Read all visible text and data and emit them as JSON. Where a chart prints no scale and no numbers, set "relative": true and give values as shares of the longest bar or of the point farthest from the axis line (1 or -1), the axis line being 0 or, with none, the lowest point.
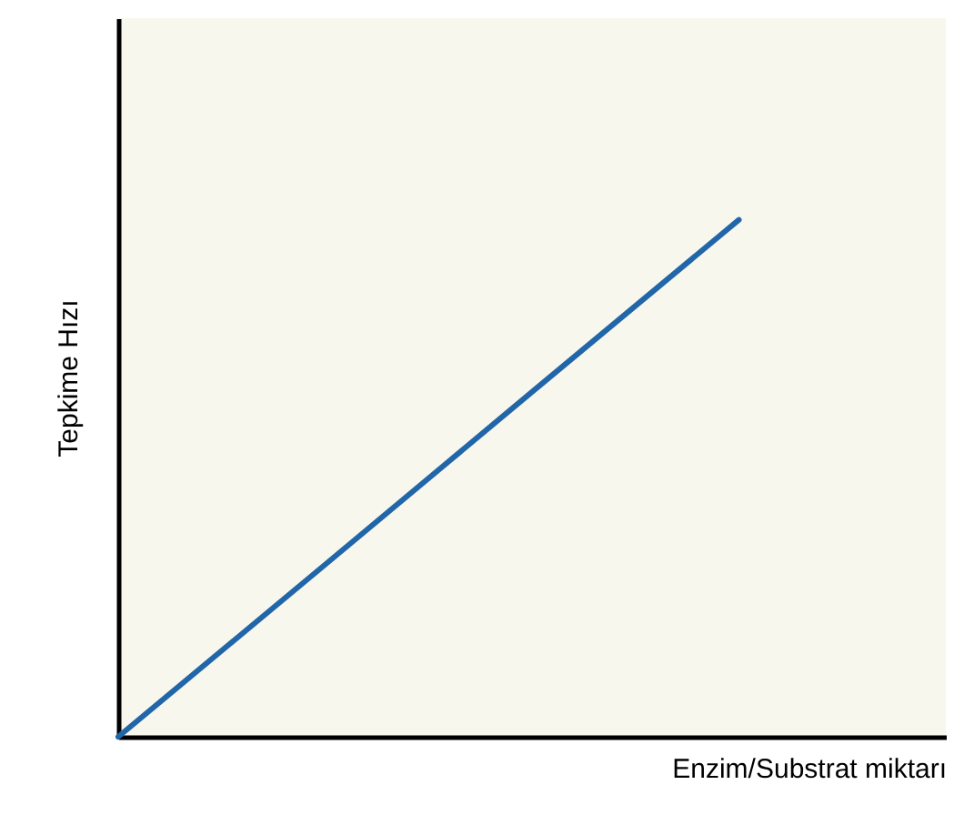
{
  "chart_data": {
    "type": "line",
    "xlabel": "Enzim/Substrat miktarı",
    "ylabel": "Tepkime Hızı",
    "relative": true,
    "categories": [
      null,
      null,
      null,
      null,
      null
    ],
    "series": [
      {
        "color": "#2166a8",
        "values": [
          0,
          0.333,
          0.667,
          1,
          null
        ]
      }
    ]
  }
}
